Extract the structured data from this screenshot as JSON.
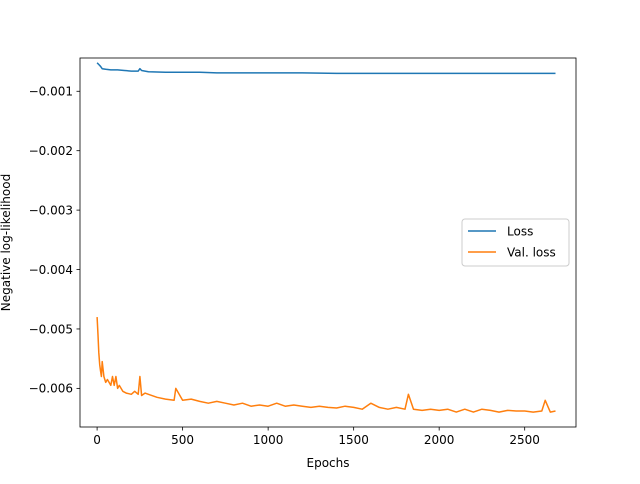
{
  "chart_data": {
    "type": "line",
    "title": "",
    "xlabel": "Epochs",
    "ylabel": "Negative log-likelihood",
    "xlim": [
      -100,
      2800
    ],
    "ylim": [
      -0.00665,
      -0.00044
    ],
    "xticks": [
      0,
      500,
      1000,
      1500,
      2000,
      2500
    ],
    "xtick_labels": [
      "0",
      "500",
      "1000",
      "1500",
      "2000",
      "2500"
    ],
    "yticks": [
      -0.001,
      -0.002,
      -0.003,
      -0.004,
      -0.005,
      -0.006
    ],
    "ytick_labels": [
      "−0.001",
      "−0.002",
      "−0.003",
      "−0.004",
      "−0.005",
      "−0.006"
    ],
    "grid": false,
    "legend_position": "center-right",
    "series": [
      {
        "name": "Loss",
        "color": "#1f77b4",
        "x": [
          0,
          10,
          20,
          30,
          50,
          80,
          120,
          160,
          200,
          240,
          250,
          260,
          300,
          400,
          500,
          600,
          700,
          800,
          900,
          1000,
          1200,
          1400,
          1600,
          1800,
          2000,
          2200,
          2400,
          2600,
          2680
        ],
        "y": [
          -0.00052,
          -0.00055,
          -0.00058,
          -0.00062,
          -0.00063,
          -0.00064,
          -0.00064,
          -0.00065,
          -0.00066,
          -0.00066,
          -0.00062,
          -0.00065,
          -0.00067,
          -0.00068,
          -0.00068,
          -0.00068,
          -0.00069,
          -0.00069,
          -0.00069,
          -0.00069,
          -0.00069,
          -0.0007,
          -0.0007,
          -0.0007,
          -0.0007,
          -0.0007,
          -0.0007,
          -0.0007,
          -0.0007
        ]
      },
      {
        "name": "Val. loss",
        "color": "#ff7f0e",
        "x": [
          0,
          5,
          10,
          15,
          20,
          25,
          30,
          40,
          50,
          60,
          70,
          80,
          90,
          100,
          110,
          120,
          130,
          150,
          170,
          200,
          220,
          240,
          250,
          260,
          280,
          300,
          350,
          400,
          450,
          460,
          500,
          550,
          600,
          650,
          700,
          750,
          800,
          850,
          900,
          950,
          1000,
          1050,
          1100,
          1150,
          1200,
          1250,
          1300,
          1350,
          1400,
          1450,
          1500,
          1550,
          1600,
          1650,
          1700,
          1750,
          1800,
          1820,
          1850,
          1900,
          1950,
          2000,
          2050,
          2100,
          2150,
          2200,
          2250,
          2300,
          2350,
          2400,
          2450,
          2500,
          2550,
          2600,
          2620,
          2650,
          2680
        ],
        "y": [
          -0.0048,
          -0.0051,
          -0.0054,
          -0.0056,
          -0.0057,
          -0.0058,
          -0.00555,
          -0.0058,
          -0.0059,
          -0.00585,
          -0.0059,
          -0.00595,
          -0.0058,
          -0.00595,
          -0.0058,
          -0.006,
          -0.00595,
          -0.00605,
          -0.00608,
          -0.0061,
          -0.00605,
          -0.0061,
          -0.0058,
          -0.00612,
          -0.00608,
          -0.0061,
          -0.00615,
          -0.00618,
          -0.0062,
          -0.006,
          -0.0062,
          -0.00618,
          -0.00622,
          -0.00625,
          -0.00622,
          -0.00625,
          -0.00628,
          -0.00625,
          -0.0063,
          -0.00628,
          -0.0063,
          -0.00625,
          -0.0063,
          -0.00628,
          -0.0063,
          -0.00632,
          -0.0063,
          -0.00632,
          -0.00633,
          -0.0063,
          -0.00632,
          -0.00635,
          -0.00625,
          -0.00632,
          -0.00635,
          -0.00632,
          -0.00635,
          -0.0061,
          -0.00635,
          -0.00637,
          -0.00635,
          -0.00637,
          -0.00635,
          -0.0064,
          -0.00635,
          -0.0064,
          -0.00635,
          -0.00637,
          -0.0064,
          -0.00637,
          -0.00638,
          -0.00638,
          -0.0064,
          -0.00638,
          -0.0062,
          -0.0064,
          -0.00638
        ]
      }
    ]
  }
}
